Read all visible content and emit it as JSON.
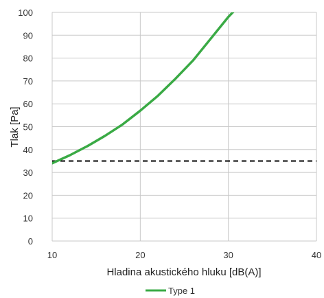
{
  "chart_data": {
    "type": "line",
    "xlabel": "Hladina akustického hluku [dB(A)]",
    "ylabel": "Tlak [Pa]",
    "xlim": [
      10,
      40
    ],
    "ylim": [
      0,
      100
    ],
    "xticks": [
      10,
      20,
      30,
      40
    ],
    "yticks": [
      0,
      10,
      20,
      30,
      40,
      50,
      60,
      70,
      80,
      90,
      100
    ],
    "grid": true,
    "legend": {
      "position": "bottom",
      "entries": [
        "Type 1"
      ]
    },
    "series": [
      {
        "name": "Type 1",
        "color": "#3aaa45",
        "x": [
          10,
          12,
          14,
          16,
          18,
          20,
          22,
          24,
          26,
          28,
          30,
          31
        ],
        "y": [
          34,
          37.5,
          41.5,
          46,
          51,
          57,
          63.5,
          71,
          79,
          88.5,
          98,
          102
        ]
      }
    ],
    "reference_lines": [
      {
        "y": 35,
        "style": "dashed",
        "color": "#000000"
      }
    ]
  }
}
